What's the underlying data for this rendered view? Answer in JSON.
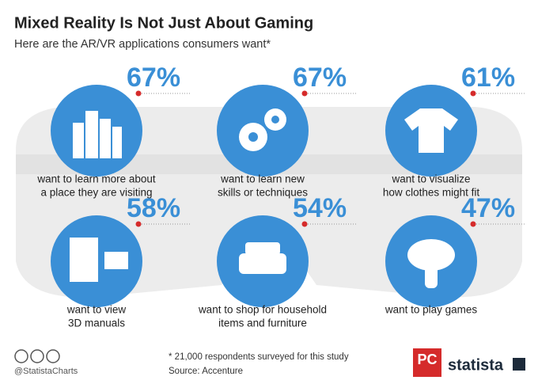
{
  "header": {
    "title": "Mixed Reality Is Not Just About Gaming",
    "subtitle": "Here are the AR/VR applications consumers want*"
  },
  "items": [
    {
      "percent": "67%",
      "label": [
        "want to learn more about",
        "a place they are visiting"
      ]
    },
    {
      "percent": "67%",
      "label": [
        "want to learn new",
        "skills or techniques"
      ]
    },
    {
      "percent": "61%",
      "label": [
        "want to visualize",
        "how clothes might fit"
      ]
    },
    {
      "percent": "58%",
      "label": [
        "want to view",
        "3D manuals"
      ]
    },
    {
      "percent": "54%",
      "label": [
        "want to shop for household",
        "items and furniture"
      ]
    },
    {
      "percent": "47%",
      "label": [
        "want to play games"
      ]
    }
  ],
  "footer": {
    "handle": "@StatistaCharts",
    "note": "* 21,000 respondents surveyed for this study",
    "source": "Source: Accenture",
    "logo_pc": "PC",
    "logo_brand": "statista"
  }
}
